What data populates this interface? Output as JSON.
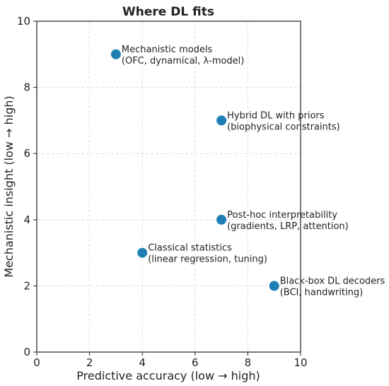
{
  "chart_data": {
    "type": "scatter",
    "title": "Where DL fits",
    "xlabel": "Predictive accuracy (low → high)",
    "ylabel": "Mechanistic insight (low → high)",
    "xlim": [
      0,
      10
    ],
    "ylim": [
      0,
      10
    ],
    "xticks": [
      "0",
      "2",
      "4",
      "6",
      "8",
      "10"
    ],
    "yticks": [
      "0",
      "2",
      "4",
      "6",
      "8",
      "10"
    ],
    "grid": true,
    "point_color": "#1f7fb4",
    "points": [
      {
        "x": 3,
        "y": 9,
        "label_line1": "Mechanistic models",
        "label_line2": "(OFC, dynamical, λ-model)"
      },
      {
        "x": 7,
        "y": 7,
        "label_line1": "Hybrid DL with priors",
        "label_line2": "(biophysical constraints)"
      },
      {
        "x": 7,
        "y": 4,
        "label_line1": "Post-hoc interpretability",
        "label_line2": "(gradients, LRP, attention)"
      },
      {
        "x": 4,
        "y": 3,
        "label_line1": "Classical statistics",
        "label_line2": "(linear regression, tuning)"
      },
      {
        "x": 9,
        "y": 2,
        "label_line1": "Black-box DL decoders",
        "label_line2": "(BCI, handwriting)"
      }
    ]
  }
}
